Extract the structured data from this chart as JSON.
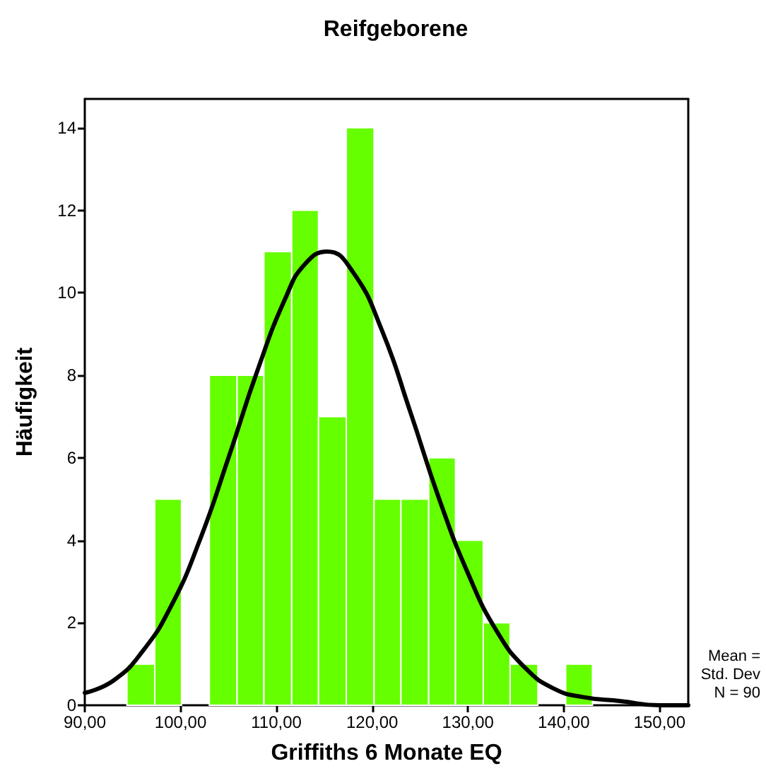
{
  "chart_data": {
    "type": "histogram",
    "title": "Reifgeborene",
    "xlabel": "Griffiths 6 Monate EQ",
    "ylabel": "Häufigkeit",
    "bins": [
      94.4,
      97.3,
      100.1,
      103.0,
      105.9,
      108.7,
      111.6,
      114.4,
      117.3,
      120.2,
      123.0,
      125.9,
      128.7,
      131.6,
      134.4,
      137.3,
      140.2,
      143.0
    ],
    "values": [
      1,
      5,
      0,
      8,
      8,
      11,
      12,
      7,
      14,
      5,
      5,
      6,
      4,
      2,
      1,
      0,
      1
    ],
    "color": "#66ff00",
    "series": [
      {
        "type": "line",
        "color": "#000000",
        "x": [
          90,
          93,
          96,
          99,
          102,
          105,
          108,
          111,
          113,
          115.3,
          118,
          121,
          124,
          127,
          130,
          133,
          136,
          139,
          142,
          146,
          150,
          153
        ],
        "values": [
          0.3,
          0.6,
          1.3,
          2.4,
          4.0,
          6.0,
          8.1,
          9.9,
          10.7,
          11.0,
          10.5,
          9.1,
          7.1,
          5.0,
          3.2,
          1.8,
          0.9,
          0.4,
          0.2,
          0.1,
          0.0,
          0.0
        ]
      }
    ],
    "xlim": [
      90,
      153
    ],
    "ylim": [
      0,
      14.7
    ],
    "xticks": [
      {
        "value": 90,
        "label": "90,00"
      },
      {
        "value": 100,
        "label": "100,00"
      },
      {
        "value": 110,
        "label": "110,00"
      },
      {
        "value": 120,
        "label": "120,00"
      },
      {
        "value": 130,
        "label": "130,00"
      },
      {
        "value": 140,
        "label": "140,00"
      },
      {
        "value": 150,
        "label": "150,00"
      }
    ],
    "yticks": [
      0,
      2,
      4,
      6,
      8,
      10,
      12,
      14
    ],
    "grid": false,
    "marker": "none",
    "line_style": "solid",
    "annotations": [
      "Mean =",
      "Std. Dev",
      "N = 90"
    ]
  }
}
